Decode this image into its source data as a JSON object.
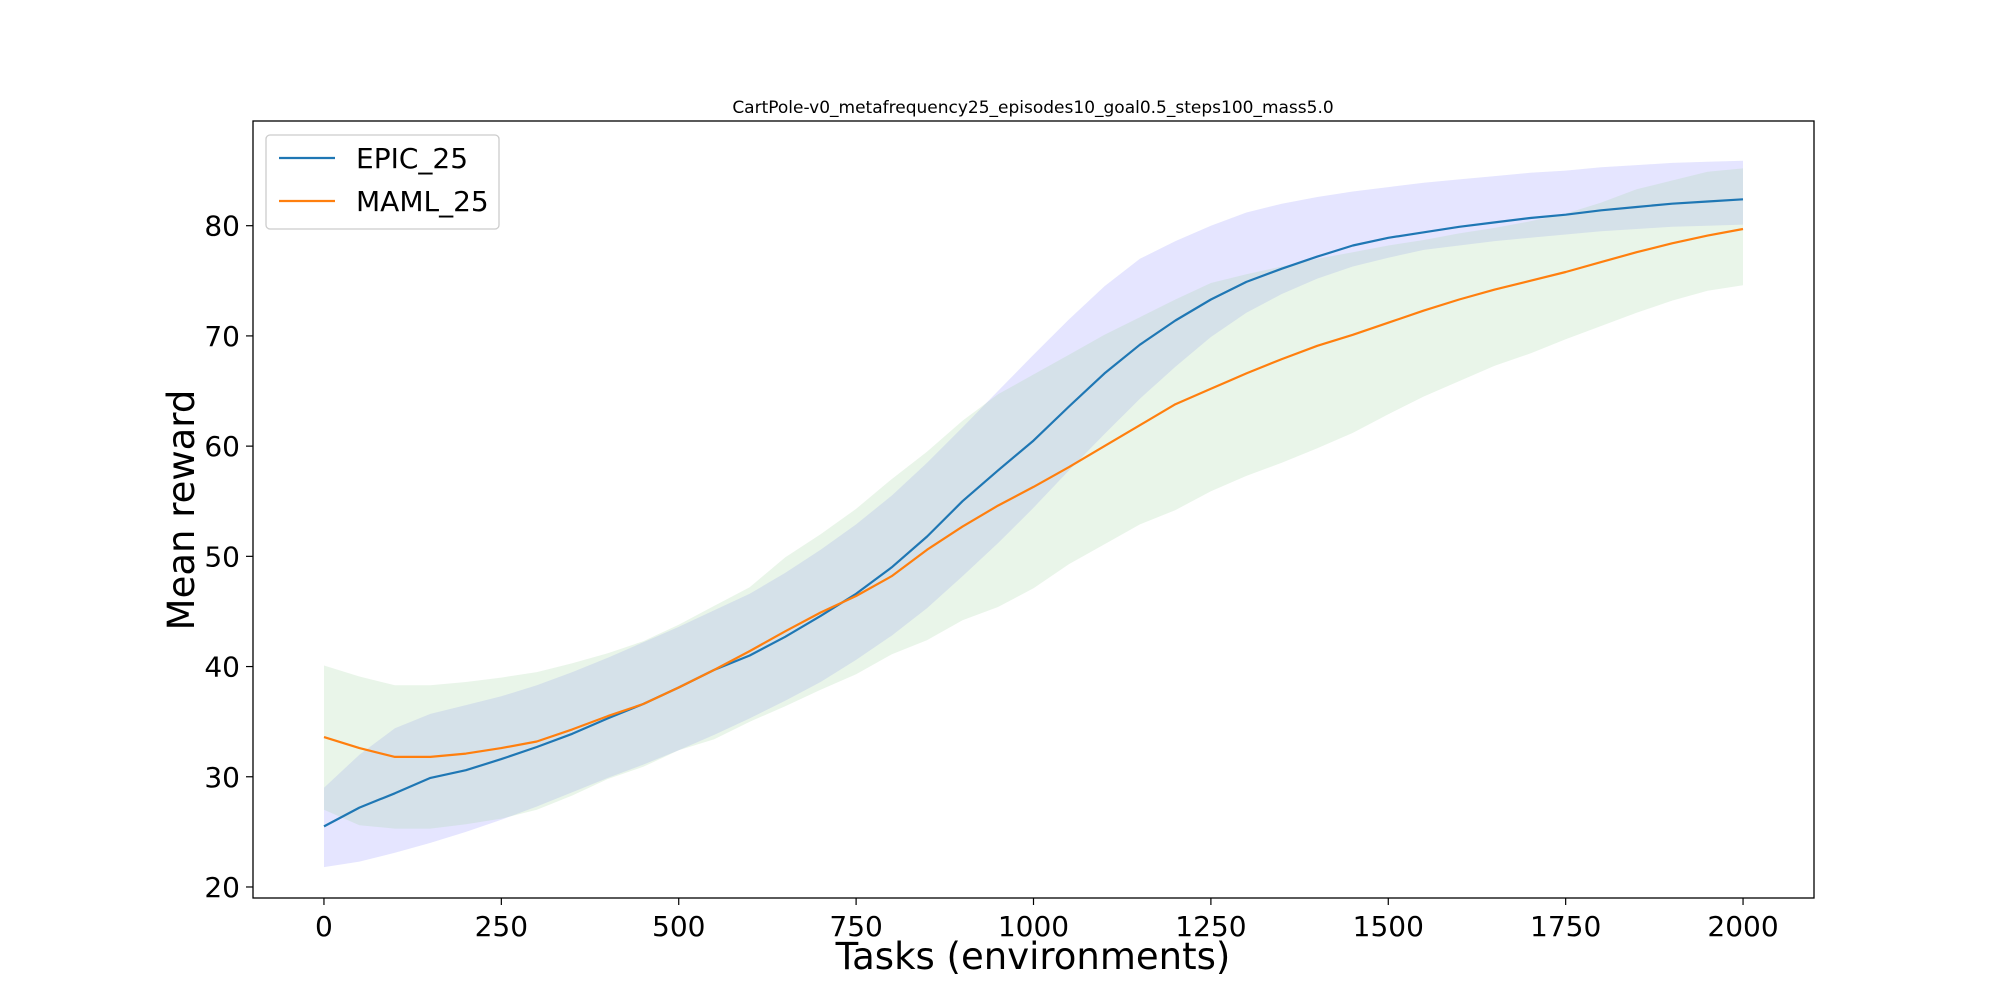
{
  "chart_data": {
    "type": "line",
    "title": "CartPole-v0_metafrequency25_episodes10_goal0.5_steps100_mass5.0",
    "xlabel": "Tasks (environments)",
    "ylabel": "Mean reward",
    "xlim": [
      -100,
      2100
    ],
    "ylim": [
      19,
      89.5
    ],
    "xticks": [
      0,
      250,
      500,
      750,
      1000,
      1250,
      1500,
      1750,
      2000
    ],
    "yticks": [
      20,
      30,
      40,
      50,
      60,
      70,
      80
    ],
    "xtick_labels": [
      "0",
      "250",
      "500",
      "750",
      "1000",
      "1250",
      "1500",
      "1750",
      "2000"
    ],
    "ytick_labels": [
      "20",
      "30",
      "40",
      "50",
      "60",
      "70",
      "80"
    ],
    "grid": false,
    "legend_position": "top-left",
    "x": [
      0,
      50,
      100,
      150,
      200,
      250,
      300,
      350,
      400,
      450,
      500,
      550,
      600,
      650,
      700,
      750,
      800,
      850,
      900,
      950,
      1000,
      1050,
      1100,
      1150,
      1200,
      1250,
      1300,
      1350,
      1400,
      1450,
      1500,
      1550,
      1600,
      1650,
      1700,
      1750,
      1800,
      1850,
      1900,
      1950,
      2000
    ],
    "series": [
      {
        "name": "EPIC_25",
        "color": "#1f77b4",
        "band_color": "#9999ff",
        "values": [
          25.5,
          27.2,
          28.5,
          29.9,
          30.6,
          31.6,
          32.7,
          33.9,
          35.3,
          36.6,
          38.1,
          39.7,
          41.0,
          42.7,
          44.6,
          46.6,
          49.0,
          51.8,
          55.0,
          57.8,
          60.5,
          63.6,
          66.6,
          69.2,
          71.4,
          73.3,
          74.9,
          76.1,
          77.2,
          78.2,
          78.9,
          79.4,
          79.9,
          80.3,
          80.7,
          81.0,
          81.4,
          81.7,
          82.0,
          82.2,
          82.4
        ],
        "lower": [
          21.8,
          22.3,
          23.1,
          24.0,
          25.0,
          26.1,
          27.3,
          28.6,
          29.9,
          31.1,
          32.4,
          33.8,
          35.3,
          36.9,
          38.6,
          40.6,
          42.8,
          45.3,
          48.2,
          51.2,
          54.4,
          57.8,
          61.1,
          64.3,
          67.2,
          69.9,
          72.1,
          73.8,
          75.2,
          76.3,
          77.1,
          77.8,
          78.2,
          78.6,
          78.9,
          79.2,
          79.5,
          79.7,
          79.9,
          80.0,
          80.1
        ],
        "upper": [
          29.0,
          32.0,
          34.4,
          35.7,
          36.5,
          37.3,
          38.3,
          39.5,
          40.8,
          42.2,
          43.6,
          45.1,
          46.6,
          48.5,
          50.6,
          52.9,
          55.5,
          58.5,
          61.7,
          65.0,
          68.3,
          71.5,
          74.5,
          77.0,
          78.6,
          80.0,
          81.2,
          82.0,
          82.6,
          83.1,
          83.5,
          83.9,
          84.2,
          84.5,
          84.8,
          85.0,
          85.3,
          85.5,
          85.7,
          85.8,
          85.9
        ]
      },
      {
        "name": "MAML_25",
        "color": "#ff7f0e",
        "band_color": "#a8d8a8",
        "values": [
          33.6,
          32.6,
          31.8,
          31.8,
          32.1,
          32.6,
          33.2,
          34.3,
          35.5,
          36.6,
          38.1,
          39.7,
          41.4,
          43.2,
          44.9,
          46.4,
          48.2,
          50.6,
          52.7,
          54.6,
          56.3,
          58.1,
          60.0,
          61.9,
          63.8,
          65.2,
          66.6,
          67.9,
          69.1,
          70.1,
          71.2,
          72.3,
          73.3,
          74.2,
          75.0,
          75.8,
          76.7,
          77.6,
          78.4,
          79.1,
          79.7
        ],
        "lower": [
          27.0,
          25.6,
          25.3,
          25.3,
          25.7,
          26.2,
          27.0,
          28.3,
          29.8,
          30.9,
          32.4,
          33.4,
          35.0,
          36.4,
          37.9,
          39.3,
          41.1,
          42.4,
          44.2,
          45.4,
          47.1,
          49.3,
          51.1,
          52.9,
          54.2,
          55.9,
          57.3,
          58.5,
          59.8,
          61.2,
          62.9,
          64.5,
          65.9,
          67.3,
          68.4,
          69.7,
          70.9,
          72.1,
          73.2,
          74.1,
          74.6
        ],
        "upper": [
          40.1,
          39.1,
          38.3,
          38.3,
          38.6,
          39.0,
          39.5,
          40.3,
          41.2,
          42.3,
          43.8,
          45.5,
          47.2,
          49.9,
          52.0,
          54.3,
          57.0,
          59.5,
          62.3,
          64.7,
          66.5,
          68.3,
          70.1,
          71.7,
          73.3,
          74.8,
          75.6,
          76.3,
          77.0,
          77.6,
          78.2,
          78.7,
          79.3,
          79.8,
          80.4,
          81.1,
          82.1,
          83.3,
          84.1,
          84.9,
          85.2
        ]
      }
    ]
  }
}
